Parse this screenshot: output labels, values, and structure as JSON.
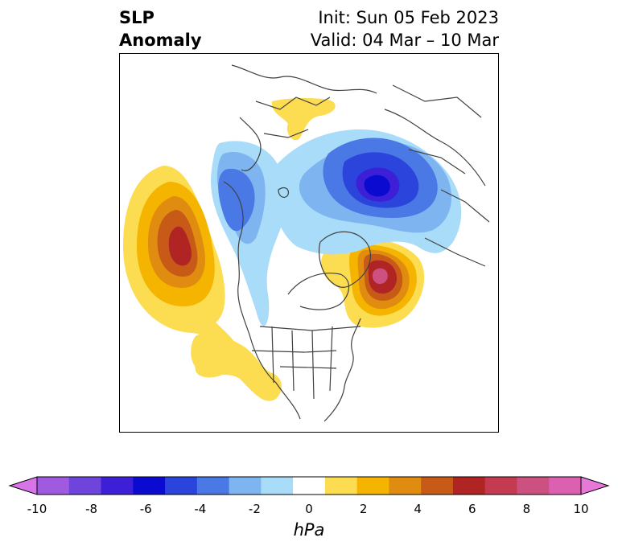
{
  "title": {
    "left_line1": "SLP",
    "left_line2": "Anomaly",
    "init": "Init: Sun 05 Feb 2023",
    "valid": "Valid: 04 Mar – 10 Mar"
  },
  "colorbar": {
    "unit": "hPa",
    "range": [
      -10,
      10
    ],
    "tick_labels": [
      "-10",
      "-8",
      "-6",
      "-4",
      "-2",
      "0",
      "2",
      "4",
      "6",
      "8",
      "10"
    ],
    "colors": [
      "#d674e8",
      "#a05ae0",
      "#6e44dc",
      "#3c1fd6",
      "#0a0ad0",
      "#2a44dc",
      "#4a78e4",
      "#7eb4f0",
      "#a8dcf8",
      "#ffffff",
      "#fcdc50",
      "#f4b400",
      "#e08c10",
      "#c85a18",
      "#b02424",
      "#c43a50",
      "#cc5080",
      "#dc60b0",
      "#e878d8"
    ]
  },
  "map": {
    "region": "North America / North Atlantic / Arctic",
    "anomalies": [
      {
        "name": "north-pacific-high",
        "sign": "positive",
        "peak_hpa": 6
      },
      {
        "name": "hudson-bay-high",
        "sign": "positive",
        "peak_hpa": 8
      },
      {
        "name": "southwest-us-high",
        "sign": "positive",
        "peak_hpa": 1
      },
      {
        "name": "europe-high",
        "sign": "positive",
        "peak_hpa": 1
      },
      {
        "name": "alaska-siberia-low",
        "sign": "negative",
        "peak_hpa": -4
      },
      {
        "name": "scandinavia-russia-low",
        "sign": "negative",
        "peak_hpa": -5
      },
      {
        "name": "arctic-low-band",
        "sign": "negative",
        "peak_hpa": -2
      }
    ]
  }
}
